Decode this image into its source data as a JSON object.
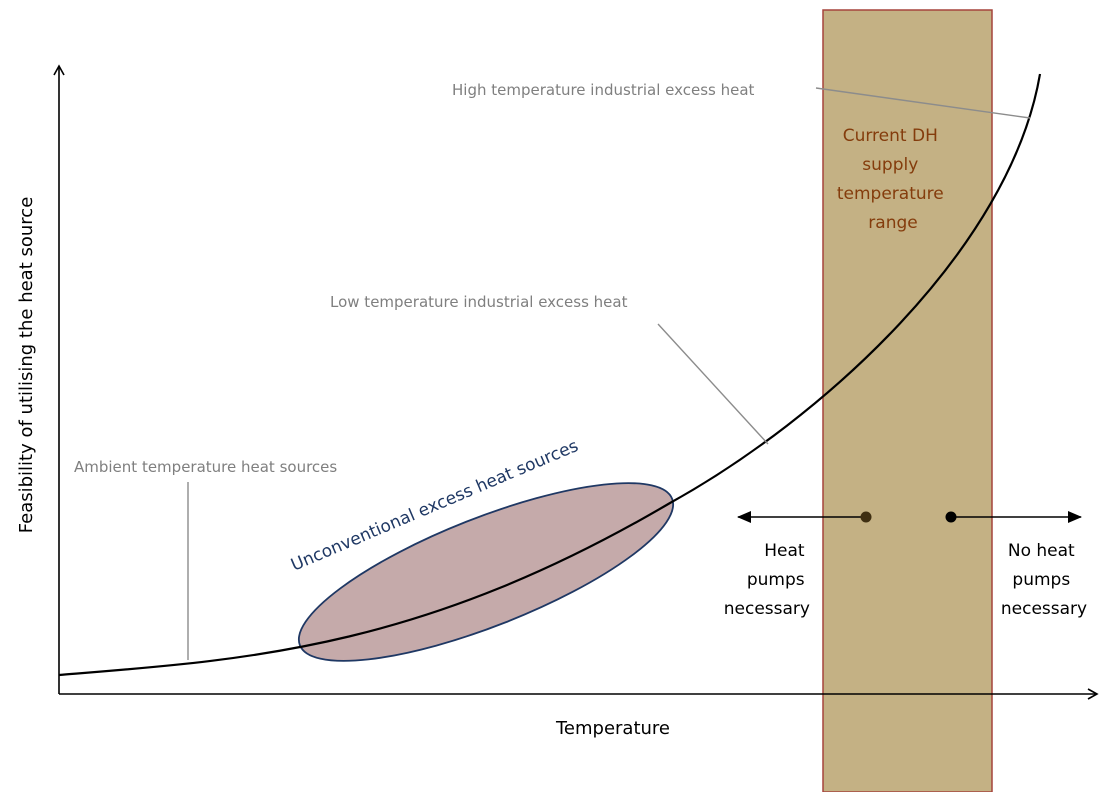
{
  "axes": {
    "x_label": "Temperature",
    "y_label": "Feasibility of utilising the heat source"
  },
  "band": {
    "label_lines": [
      "Current DH",
      "supply",
      "temperature",
      "range"
    ],
    "fill_color": "#c4b184",
    "border_color": "#a5443c",
    "text_color": "#843c0c"
  },
  "annotations": {
    "high_temp": "High temperature industrial excess heat",
    "low_temp": "Low temperature industrial excess heat",
    "ambient": "Ambient temperature heat sources",
    "unconventional": "Unconventional excess heat sources"
  },
  "left_arrow": {
    "lines": [
      "Heat",
      "pumps",
      "necessary"
    ]
  },
  "right_arrow": {
    "lines": [
      "No heat",
      "pumps",
      "necessary"
    ]
  },
  "colors": {
    "curve": "#000000",
    "ellipse_fill": "#c5aaaa",
    "ellipse_border": "#1f3864",
    "annotation_gray": "#7f7f7f",
    "unconventional_text": "#1f3864"
  }
}
